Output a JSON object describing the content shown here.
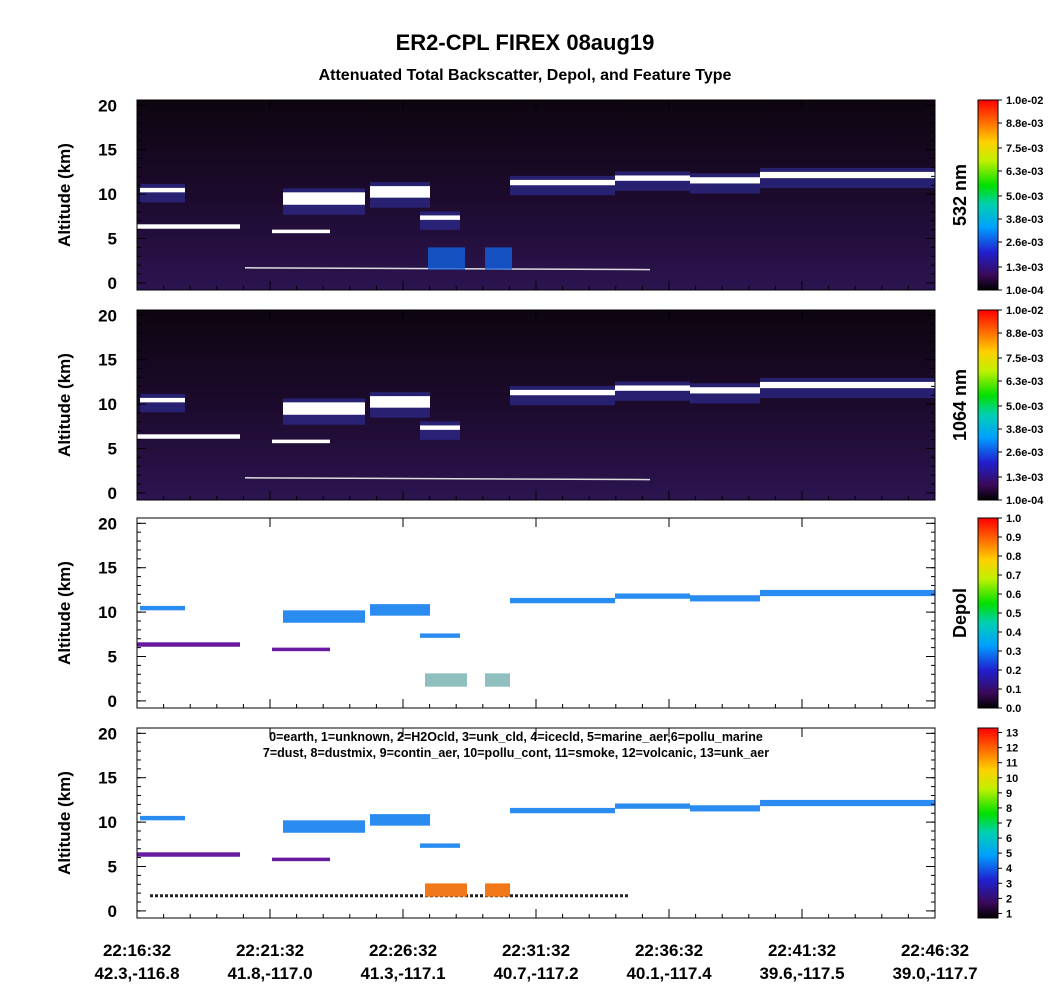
{
  "chart_data": {
    "type": "curtain",
    "title": "ER2-CPL FIREX 08aug19",
    "subtitle": "Attenuated Total Backscatter, Depol, and Feature Type",
    "x_tick_times": [
      "22:16:32",
      "22:21:32",
      "22:26:32",
      "22:31:32",
      "22:36:32",
      "22:41:32",
      "22:46:32"
    ],
    "x_tick_locations": [
      "42.3,-116.8",
      "41.8,-117.0",
      "41.3,-117.1",
      "40.7,-117.2",
      "40.1,-117.4",
      "39.6,-117.5",
      "39.0,-117.7"
    ],
    "panels": [
      {
        "field": "backscatter",
        "ylabel": "Altitude (km)",
        "ylim": [
          -0.8,
          20.6
        ],
        "yticks": [
          0,
          5,
          10,
          15,
          20
        ],
        "colorbar_label": "532 nm",
        "clim": [
          0.0001,
          0.01
        ],
        "colorbar_ticks": [
          {
            "value": 0.0001,
            "label": "1.0e-04"
          },
          {
            "value": 0.0013,
            "label": "1.3e-03"
          },
          {
            "value": 0.0026,
            "label": "2.6e-03"
          },
          {
            "value": 0.0038,
            "label": "3.8e-03"
          },
          {
            "value": 0.005,
            "label": "5.0e-03"
          },
          {
            "value": 0.0063,
            "label": "6.3e-03"
          },
          {
            "value": 0.0075,
            "label": "7.5e-03"
          },
          {
            "value": 0.0088,
            "label": "8.8e-03"
          },
          {
            "value": 0.01,
            "label": "1.0e-02"
          }
        ]
      },
      {
        "field": "backscatter",
        "ylabel": "Altitude (km)",
        "ylim": [
          -0.8,
          20.6
        ],
        "yticks": [
          0,
          5,
          10,
          15,
          20
        ],
        "colorbar_label": "1064 nm",
        "clim": [
          0.0001,
          0.01
        ],
        "colorbar_ticks": [
          {
            "value": 0.0001,
            "label": "1.0e-04"
          },
          {
            "value": 0.0013,
            "label": "1.3e-03"
          },
          {
            "value": 0.0026,
            "label": "2.6e-03"
          },
          {
            "value": 0.0038,
            "label": "3.8e-03"
          },
          {
            "value": 0.005,
            "label": "5.0e-03"
          },
          {
            "value": 0.0063,
            "label": "6.3e-03"
          },
          {
            "value": 0.0075,
            "label": "7.5e-03"
          },
          {
            "value": 0.0088,
            "label": "8.8e-03"
          },
          {
            "value": 0.01,
            "label": "1.0e-02"
          }
        ]
      },
      {
        "field": "depol",
        "ylabel": "Altitude (km)",
        "ylim": [
          -0.8,
          20.6
        ],
        "yticks": [
          0,
          5,
          10,
          15,
          20
        ],
        "colorbar_label": "Depol",
        "clim": [
          0,
          1
        ],
        "colorbar_ticks": [
          {
            "value": 0,
            "label": "0.0"
          },
          {
            "value": 0.1,
            "label": "0.1"
          },
          {
            "value": 0.2,
            "label": "0.2"
          },
          {
            "value": 0.3,
            "label": "0.3"
          },
          {
            "value": 0.4,
            "label": "0.4"
          },
          {
            "value": 0.5,
            "label": "0.5"
          },
          {
            "value": 0.6,
            "label": "0.6"
          },
          {
            "value": 0.7,
            "label": "0.7"
          },
          {
            "value": 0.8,
            "label": "0.8"
          },
          {
            "value": 0.9,
            "label": "0.9"
          },
          {
            "value": 1,
            "label": "1.0"
          }
        ]
      },
      {
        "field": "feature",
        "ylabel": "Altitude (km)",
        "ylim": [
          -0.8,
          20.6
        ],
        "yticks": [
          0,
          5,
          10,
          15,
          20
        ],
        "clim": [
          0.7,
          13.3
        ],
        "colorbar_ticks": [
          1,
          2,
          3,
          4,
          5,
          6,
          7,
          8,
          9,
          10,
          11,
          12,
          13
        ],
        "legend_lines": [
          "0=earth, 1=unknown, 2=H2Ocld, 3=unk_cld, 4=icecld, 5=marine_aer,6=pollu_marine",
          "7=dust, 8=dustmix, 9=contin_aer, 10=pollu_cont, 11=smoke, 12=volcanic, 13=unk_aer"
        ]
      }
    ]
  }
}
